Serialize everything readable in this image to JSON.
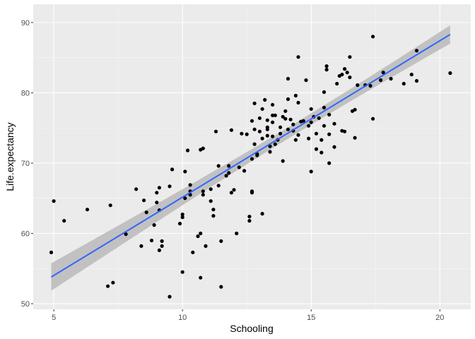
{
  "chart_data": {
    "type": "scatter",
    "xlabel": "Schooling",
    "ylabel": "Life.expectancy",
    "xlim": [
      4.2,
      21.2
    ],
    "ylim": [
      49.2,
      92.6
    ],
    "xticks": [
      5,
      10,
      15,
      20
    ],
    "yticks": [
      50,
      60,
      70,
      80,
      90
    ],
    "grid": true,
    "background": "#ebebeb",
    "point_color": "#000000",
    "fit": {
      "method": "lm",
      "color": "#3366ff",
      "band_color": "#bdbdbd",
      "x": [
        4.9,
        20.4
      ],
      "y": [
        53.8,
        88.3
      ],
      "ci_low": [
        51.9,
        87.0
      ],
      "ci_high": [
        55.8,
        89.6
      ]
    },
    "points": [
      [
        4.9,
        57.3
      ],
      [
        5.0,
        64.6
      ],
      [
        5.4,
        61.8
      ],
      [
        6.3,
        63.4
      ],
      [
        7.2,
        64.0
      ],
      [
        7.1,
        52.5
      ],
      [
        7.3,
        53.0
      ],
      [
        7.8,
        59.9
      ],
      [
        8.2,
        66.3
      ],
      [
        8.5,
        64.7
      ],
      [
        8.4,
        58.2
      ],
      [
        8.6,
        63.0
      ],
      [
        8.8,
        59.0
      ],
      [
        8.9,
        61.2
      ],
      [
        9.0,
        64.4
      ],
      [
        9.0,
        65.8
      ],
      [
        9.1,
        66.5
      ],
      [
        9.1,
        63.3
      ],
      [
        9.1,
        57.6
      ],
      [
        9.2,
        58.9
      ],
      [
        9.2,
        58.2
      ],
      [
        9.5,
        66.7
      ],
      [
        9.6,
        69.1
      ],
      [
        9.5,
        51.0
      ],
      [
        9.9,
        61.4
      ],
      [
        10.0,
        62.3
      ],
      [
        10.0,
        62.7
      ],
      [
        10.0,
        54.5
      ],
      [
        10.1,
        68.8
      ],
      [
        10.1,
        65.0
      ],
      [
        10.2,
        71.8
      ],
      [
        10.3,
        65.5
      ],
      [
        10.3,
        66.0
      ],
      [
        10.3,
        66.9
      ],
      [
        10.4,
        57.3
      ],
      [
        10.6,
        59.6
      ],
      [
        10.7,
        60.0
      ],
      [
        10.7,
        71.9
      ],
      [
        10.8,
        72.1
      ],
      [
        10.8,
        66.0
      ],
      [
        10.8,
        65.5
      ],
      [
        10.9,
        58.2
      ],
      [
        10.7,
        53.7
      ],
      [
        11.1,
        66.3
      ],
      [
        11.1,
        64.6
      ],
      [
        11.2,
        63.4
      ],
      [
        11.2,
        62.5
      ],
      [
        11.3,
        74.5
      ],
      [
        11.4,
        69.6
      ],
      [
        11.4,
        66.8
      ],
      [
        11.5,
        58.9
      ],
      [
        11.5,
        52.4
      ],
      [
        11.7,
        68.2
      ],
      [
        11.8,
        68.6
      ],
      [
        11.9,
        74.7
      ],
      [
        11.8,
        69.6
      ],
      [
        11.9,
        65.8
      ],
      [
        12.0,
        66.2
      ],
      [
        12.1,
        60.0
      ],
      [
        12.2,
        69.4
      ],
      [
        12.3,
        74.2
      ],
      [
        12.4,
        68.9
      ],
      [
        12.5,
        74.1
      ],
      [
        12.6,
        61.8
      ],
      [
        12.6,
        62.4
      ],
      [
        12.7,
        65.8
      ],
      [
        12.7,
        66.0
      ],
      [
        12.7,
        70.6
      ],
      [
        12.7,
        76.0
      ],
      [
        12.8,
        78.5
      ],
      [
        12.8,
        74.8
      ],
      [
        12.8,
        72.7
      ],
      [
        12.9,
        71.3
      ],
      [
        12.9,
        71.1
      ],
      [
        13.0,
        74.5
      ],
      [
        13.0,
        76.4
      ],
      [
        13.1,
        77.7
      ],
      [
        13.1,
        73.5
      ],
      [
        13.1,
        62.8
      ],
      [
        13.2,
        79.0
      ],
      [
        13.3,
        76.1
      ],
      [
        13.3,
        75.1
      ],
      [
        13.3,
        74.8
      ],
      [
        13.3,
        73.9
      ],
      [
        13.4,
        72.4
      ],
      [
        13.4,
        71.6
      ],
      [
        13.5,
        78.3
      ],
      [
        13.5,
        76.8
      ],
      [
        13.5,
        75.8
      ],
      [
        13.5,
        73.8
      ],
      [
        13.6,
        76.8
      ],
      [
        13.6,
        72.7
      ],
      [
        13.7,
        73.3
      ],
      [
        13.8,
        75.1
      ],
      [
        13.8,
        74.2
      ],
      [
        13.9,
        76.6
      ],
      [
        13.9,
        70.3
      ],
      [
        14.0,
        77.4
      ],
      [
        14.0,
        76.3
      ],
      [
        14.1,
        79.1
      ],
      [
        14.1,
        74.8
      ],
      [
        14.1,
        82.0
      ],
      [
        14.2,
        76.2
      ],
      [
        14.3,
        75.5
      ],
      [
        14.3,
        74.6
      ],
      [
        14.4,
        79.6
      ],
      [
        14.4,
        73.3
      ],
      [
        14.5,
        78.6
      ],
      [
        14.5,
        74.0
      ],
      [
        14.5,
        85.1
      ],
      [
        14.6,
        75.9
      ],
      [
        14.7,
        76.0
      ],
      [
        14.8,
        81.8
      ],
      [
        14.9,
        75.3
      ],
      [
        14.9,
        73.5
      ],
      [
        15.0,
        77.7
      ],
      [
        15.0,
        75.8
      ],
      [
        15.0,
        68.8
      ],
      [
        15.1,
        76.6
      ],
      [
        15.2,
        74.2
      ],
      [
        15.2,
        72.0
      ],
      [
        15.3,
        76.4
      ],
      [
        15.4,
        73.3
      ],
      [
        15.4,
        71.5
      ],
      [
        15.5,
        80.1
      ],
      [
        15.5,
        77.9
      ],
      [
        15.5,
        75.3
      ],
      [
        15.6,
        83.8
      ],
      [
        15.6,
        83.3
      ],
      [
        15.7,
        76.9
      ],
      [
        15.7,
        74.1
      ],
      [
        15.7,
        70.0
      ],
      [
        15.9,
        75.6
      ],
      [
        15.9,
        72.3
      ],
      [
        16.0,
        81.3
      ],
      [
        16.1,
        82.4
      ],
      [
        16.2,
        82.6
      ],
      [
        16.2,
        74.6
      ],
      [
        16.3,
        83.4
      ],
      [
        16.3,
        74.5
      ],
      [
        16.4,
        82.9
      ],
      [
        16.5,
        82.2
      ],
      [
        16.5,
        85.1
      ],
      [
        16.6,
        77.4
      ],
      [
        16.7,
        73.6
      ],
      [
        16.7,
        77.6
      ],
      [
        16.8,
        81.1
      ],
      [
        17.1,
        81.1
      ],
      [
        17.3,
        81.0
      ],
      [
        17.4,
        88.0
      ],
      [
        17.4,
        76.3
      ],
      [
        17.7,
        81.8
      ],
      [
        17.8,
        82.9
      ],
      [
        18.1,
        82.0
      ],
      [
        18.6,
        81.3
      ],
      [
        18.9,
        82.6
      ],
      [
        19.1,
        86.0
      ],
      [
        19.1,
        81.7
      ],
      [
        20.4,
        82.8
      ]
    ]
  }
}
